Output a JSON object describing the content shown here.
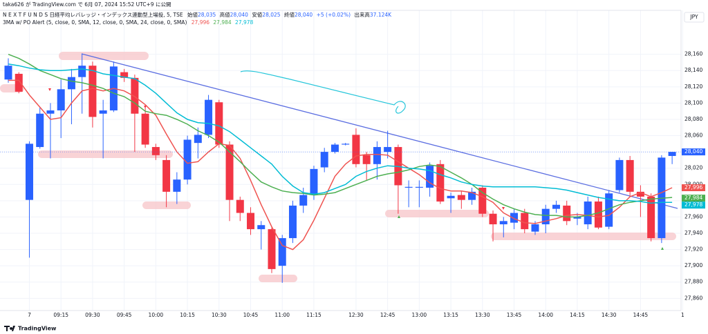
{
  "header": {
    "published": "taka626 が TradingView.com で 6月 07, 2024 15:52 UTC+9 に公開",
    "symbol": "N E X T   F U N D S   日経平均レバレッジ・インデックス連動型上場投, 5, TSE",
    "ohlc": [
      [
        "始値",
        "28,035"
      ],
      [
        "高値",
        "28,040"
      ],
      [
        "安値",
        "28,025"
      ],
      [
        "終値",
        "28,040"
      ]
    ],
    "change": "+5 (+0.02%)",
    "volume_label": "出来高",
    "volume": "37.124K",
    "indicator": "3MA w/ PO Alert (5, close, 0, SMA, 12, close, 0, SMA, 24, close, 0, SMA)",
    "currency": "JPY",
    "footer": "TradingView"
  },
  "chart_data": {
    "type": "candlestick",
    "categories": [
      null,
      null,
      "7",
      null,
      null,
      "09:15",
      null,
      null,
      "09:30",
      null,
      null,
      "09:45",
      null,
      null,
      "10:00",
      null,
      null,
      "10:15",
      null,
      null,
      "10:30",
      null,
      null,
      "10:45",
      null,
      null,
      "11:00",
      null,
      null,
      "11:15",
      null,
      null,
      null,
      "12:30",
      null,
      null,
      "12:45",
      null,
      null,
      "13:00",
      null,
      null,
      "13:15",
      null,
      null,
      "13:30",
      null,
      null,
      "13:45",
      null,
      null,
      "14:00",
      null,
      null,
      "14:15",
      null,
      null,
      "14:30",
      null,
      null,
      "14:45",
      null,
      null,
      null,
      "1"
    ],
    "open": [
      28129,
      28136,
      27981,
      28046,
      28087,
      28091,
      28117,
      28132,
      28146,
      28087,
      28091,
      28138,
      28131,
      28087,
      28046,
      28030,
      27991,
      28006,
      28051,
      28061,
      28101,
      28049,
      27981,
      27965,
      27945,
      27945,
      27900,
      27934,
      27974,
      27987,
      28021,
      28040,
      28049,
      28061,
      28036,
      28025,
      28040,
      28046,
      27996,
      27996,
      27996,
      28025,
      27983,
      27987,
      27981,
      27996,
      27964,
      27951,
      27953,
      27965,
      27942,
      27951,
      27970,
      27974,
      27958,
      27951,
      27979,
      27948,
      27993,
      28030,
      27991,
      27985,
      27934,
      28035,
      null
    ],
    "high": [
      28155,
      28138,
      28053,
      28095,
      28100,
      28129,
      28142,
      28161,
      28151,
      28104,
      28151,
      28142,
      28135,
      28095,
      28050,
      28036,
      28015,
      28060,
      28070,
      28110,
      28104,
      28053,
      27985,
      27972,
      27955,
      27947,
      27938,
      27980,
      27996,
      28023,
      28045,
      28051,
      28051,
      28069,
      28040,
      28053,
      28066,
      28049,
      28005,
      28005,
      28027,
      28030,
      27990,
      27992,
      27996,
      27999,
      27968,
      27960,
      27970,
      27970,
      27955,
      27975,
      27980,
      27980,
      27965,
      27985,
      27985,
      27993,
      28033,
      28035,
      27999,
      27989,
      28036,
      28040,
      null
    ],
    "low": [
      28125,
      28112,
      27910,
      28044,
      28032,
      28057,
      28074,
      28087,
      28070,
      28032,
      28089,
      28126,
      28040,
      28045,
      28030,
      27972,
      27976,
      28000,
      28032,
      28057,
      28045,
      27955,
      27955,
      27938,
      27920,
      27891,
      27879,
      27928,
      27965,
      27981,
      28015,
      28038,
      28048,
      28021,
      28005,
      28006,
      28032,
      27964,
      27972,
      27972,
      27985,
      27976,
      27965,
      27970,
      27975,
      27960,
      27930,
      27935,
      27945,
      27940,
      27938,
      27940,
      27965,
      27950,
      27950,
      27945,
      27945,
      27945,
      27990,
      27985,
      27960,
      27930,
      27928,
      28025,
      null
    ],
    "close": [
      28146,
      28114,
      28050,
      28087,
      28091,
      28117,
      28132,
      28146,
      28083,
      28091,
      28145,
      28131,
      28087,
      28049,
      28036,
      27991,
      28006,
      28055,
      28061,
      28104,
      28049,
      27981,
      27965,
      27945,
      27950,
      27896,
      27934,
      27974,
      27987,
      28019,
      28040,
      28049,
      28050,
      28025,
      28025,
      28046,
      28046,
      27999,
      27997,
      27997,
      28023,
      27979,
      27986,
      27981,
      27991,
      27964,
      27951,
      27955,
      27965,
      27945,
      27951,
      27970,
      27975,
      27955,
      27960,
      27979,
      27947,
      27989,
      28030,
      27991,
      27985,
      27934,
      28033,
      28040,
      null
    ],
    "up_color": "#2962ff",
    "down_color": "#f23645",
    "series": [
      {
        "name": "SMA 5",
        "color": "#ef5350",
        "last_label": "27,996",
        "values": [
          28128,
          28128,
          28110,
          28095,
          28080,
          28082,
          28100,
          28115,
          28118,
          28115,
          28118,
          28115,
          28108,
          28098,
          28085,
          28062,
          28040,
          28026,
          28028,
          28040,
          28050,
          28048,
          28032,
          28005,
          27975,
          27948,
          27925,
          27920,
          27932,
          27956,
          27983,
          28010,
          28025,
          28035,
          28037,
          28037,
          28036,
          28028,
          28020,
          28012,
          28002,
          27995,
          27992,
          27992,
          27990,
          27985,
          27978,
          27965,
          27958,
          27953,
          27952,
          27955,
          27958,
          27962,
          27963,
          27962,
          27960,
          27962,
          27972,
          27985,
          27990,
          27985,
          27990,
          27996,
          null
        ]
      },
      {
        "name": "SMA 24",
        "color": "#4caf50",
        "last_label": "27,984",
        "values": [
          28160,
          28155,
          28148,
          28140,
          28135,
          28130,
          28127,
          28125,
          28122,
          28118,
          28112,
          28108,
          28100,
          28090,
          28087,
          28085,
          28080,
          28074,
          28066,
          28060,
          28052,
          28040,
          28028,
          28015,
          28003,
          27997,
          27992,
          27990,
          27989,
          27987,
          27988,
          27990,
          27995,
          28000,
          28005,
          28010,
          28013,
          28015,
          28018,
          28022,
          28024,
          28022,
          28015,
          28008,
          28000,
          27990,
          27982,
          27975,
          27970,
          27966,
          27963,
          27962,
          27962,
          27960,
          27960,
          27962,
          27965,
          27970,
          27975,
          27978,
          27980,
          27982,
          27983,
          27984,
          null
        ]
      },
      {
        "name": "SMA 12",
        "color": "#00bcd4",
        "last_label": "27,978",
        "values": [
          28148,
          28146,
          28143,
          28141,
          28140,
          28140,
          28141,
          28142,
          28140,
          28136,
          28134,
          28132,
          28130,
          28122,
          28112,
          28100,
          28088,
          28080,
          28076,
          28075,
          28072,
          28065,
          28055,
          28045,
          28035,
          28025,
          28010,
          27998,
          27990,
          27988,
          27990,
          27995,
          28000,
          28010,
          28016,
          28020,
          28023,
          28022,
          28020,
          28019,
          28017,
          28012,
          28008,
          28003,
          28000,
          27998,
          27997,
          27997,
          27997,
          27997,
          27997,
          27996,
          27995,
          27993,
          27990,
          27987,
          27984,
          27982,
          27980,
          27980,
          27979,
          27977,
          27978,
          27978,
          null
        ]
      }
    ],
    "last_price": {
      "value": 28040,
      "label": "28,040"
    },
    "ylim": [
      27845,
      28214
    ],
    "yticks": [
      {
        "value": 27860,
        "label": "27,860"
      },
      {
        "value": 27880,
        "label": "27,880"
      },
      {
        "value": 27900,
        "label": "27,900"
      },
      {
        "value": 27920,
        "label": "27,920"
      },
      {
        "value": 27940,
        "label": "27,940"
      },
      {
        "value": 27960,
        "label": "27,960"
      },
      {
        "value": 27980,
        "label": "27,980"
      },
      {
        "value": 28000,
        "label": "28,000"
      },
      {
        "value": 28020,
        "label": "28,020"
      },
      {
        "value": 28040,
        "label": "28,040"
      },
      {
        "value": 28060,
        "label": "28,060"
      },
      {
        "value": 28080,
        "label": "28,080"
      },
      {
        "value": 28100,
        "label": "28,100"
      },
      {
        "value": 28120,
        "label": "28,120"
      },
      {
        "value": 28140,
        "label": "28,140"
      },
      {
        "value": 28160,
        "label": "28,160"
      }
    ],
    "grid": true
  }
}
